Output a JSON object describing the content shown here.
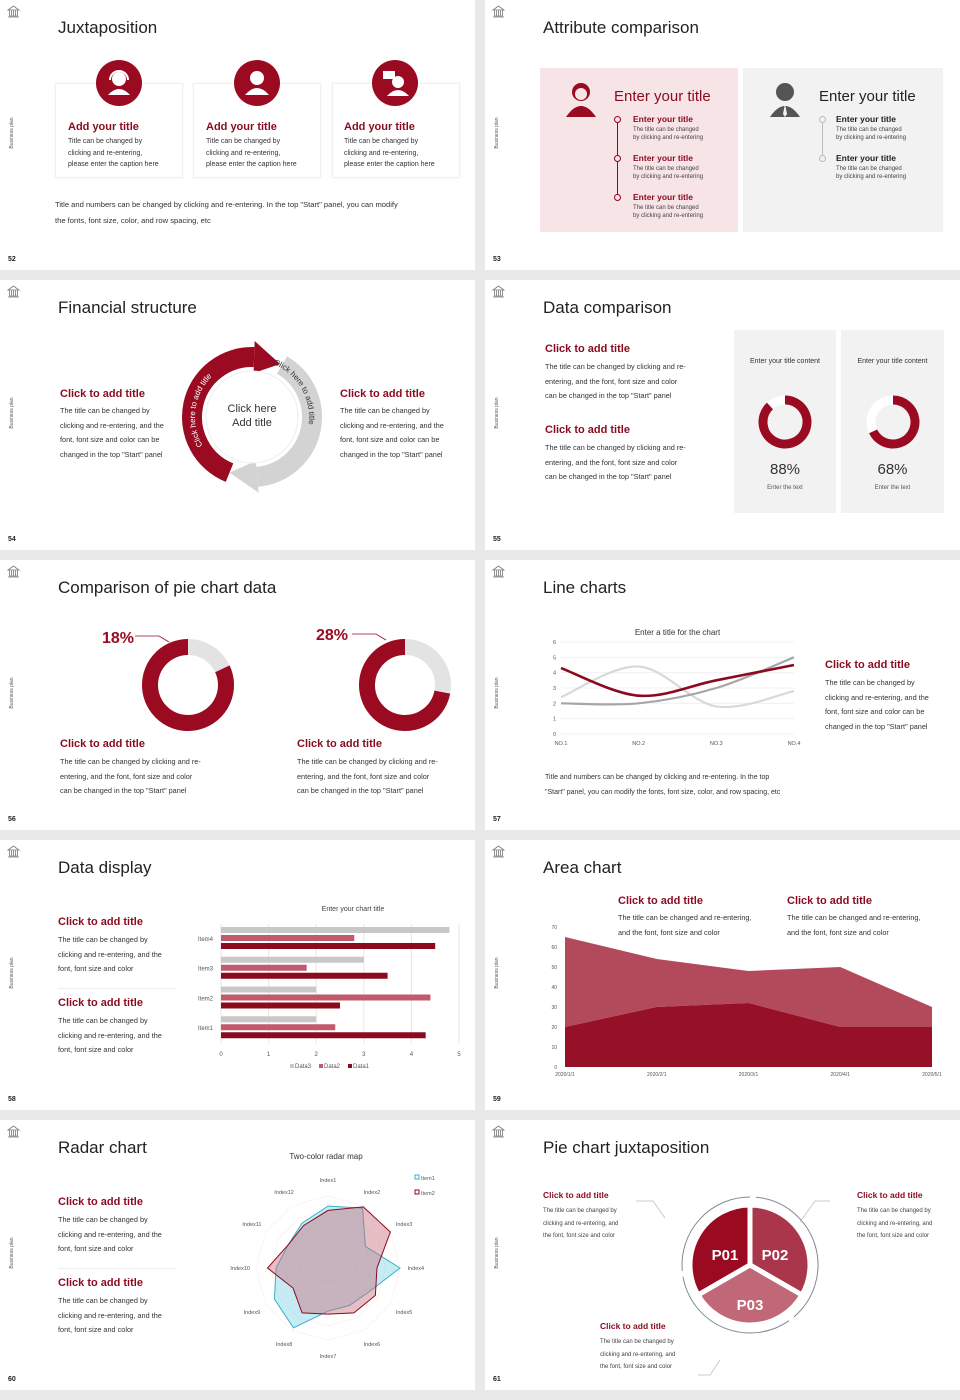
{
  "common": {
    "side_text": "Business plan"
  },
  "colors": {
    "accent": "#9a0b22",
    "accent_mid": "#b04a5a",
    "accent_light": "#c8707f",
    "gray": "#d3d3d3",
    "pink_panel": "#f6e4e7",
    "gray_panel": "#f2f2f2"
  },
  "slides": [
    {
      "page": "52",
      "title": "Juxtaposition",
      "cards": [
        {
          "icon": "headset-person-icon",
          "title": "Add your title",
          "body": "Title can be changed by\nclicking and re-entering,\nplease enter the caption here"
        },
        {
          "icon": "person-icon",
          "title": "Add your title",
          "body": "Title can be changed by\nclicking and re-entering,\nplease enter the caption here"
        },
        {
          "icon": "person-chat-icon",
          "title": "Add your title",
          "body": "Title can be changed by\nclicking and re-entering,\nplease enter the caption here"
        }
      ],
      "footer": "Title and numbers can be changed by clicking and re-entering. In the top \"Start\" panel, you can modify\nthe fonts, font size, color, and row spacing, etc"
    },
    {
      "page": "53",
      "title": "Attribute comparison",
      "left": {
        "title": "Enter your title",
        "items": [
          {
            "title": "Enter your title",
            "body": "The title can be changed\nby clicking and re-entering"
          },
          {
            "title": "Enter your title",
            "body": "The title can be changed\nby clicking and re-entering"
          },
          {
            "title": "Enter your title",
            "body": "The title can be changed\nby clicking and re-entering"
          }
        ]
      },
      "right": {
        "title": "Enter your title",
        "items": [
          {
            "title": "Enter your title",
            "body": "The title can be changed\nby clicking and re-entering"
          },
          {
            "title": "Enter your title",
            "body": "The title can be changed\nby clicking and re-entering"
          }
        ]
      }
    },
    {
      "page": "54",
      "title": "Financial structure",
      "left": {
        "title": "Click to add title",
        "body": "The title can be changed by\nclicking and re-entering, and the\nfont, font size and color can be\nchanged in the top \"Start\" panel"
      },
      "right": {
        "title": "Click to add title",
        "body": "The title can be changed by\nclicking and re-entering, and the\nfont, font size and color can be\nchanged in the top \"Start\" panel"
      },
      "center": "Click here\nAdd title",
      "arc_left": "Click here to add title",
      "arc_right": "Click here to add title"
    },
    {
      "page": "55",
      "title": "Data comparison",
      "blocks": [
        {
          "title": "Click to add title",
          "body": "The title can be changed by clicking and re-\nentering, and the font, font size and color\ncan be changed in the top \"Start\" panel"
        },
        {
          "title": "Click to add title",
          "body": "The title can be changed by clicking and re-\nentering, and the font, font size and color\ncan be changed in the top \"Start\" panel"
        }
      ],
      "cards": [
        {
          "title": "Enter your title content",
          "value": "88%",
          "percent": 88,
          "sub": "Enter the text"
        },
        {
          "title": "Enter your title content",
          "value": "68%",
          "percent": 68,
          "sub": "Enter the text"
        }
      ]
    },
    {
      "page": "56",
      "title": "Comparison of pie chart data",
      "pies": [
        {
          "label": "18%",
          "percent": 18,
          "title": "Click to add title",
          "body": "The title can be changed by clicking and re-\nentering, and the font, font size and color\ncan be changed in the top \"Start\" panel"
        },
        {
          "label": "28%",
          "percent": 28,
          "title": "Click to add title",
          "body": "The title can be changed by clicking and re-\nentering, and the font, font size and color\ncan be changed in the top \"Start\" panel"
        }
      ]
    },
    {
      "page": "57",
      "title": "Line charts",
      "block": {
        "title": "Click to add title",
        "body": "The title can be changed by\nclicking and re-entering, and the\nfont, font size and color can be\nchanged in the top \"Start\" panel"
      },
      "footer": "Title and numbers can be changed by clicking and re-entering. In the top\n\"Start\" panel, you can modify the fonts, font size, color, and row spacing, etc"
    },
    {
      "page": "58",
      "title": "Data display",
      "blocks": [
        {
          "title": "Click to add title",
          "body": "The title can be changed by\nclicking and re-entering, and the\nfont, font size and color"
        },
        {
          "title": "Click to add title",
          "body": "The title can be changed by\nclicking and re-entering, and the\nfont, font size and color"
        }
      ]
    },
    {
      "page": "59",
      "title": "Area chart",
      "blocks": [
        {
          "title": "Click to add title",
          "body": "The title can be changed and re-entering,\nand the font, font size and color"
        },
        {
          "title": "Click to add title",
          "body": "The title can be changed and re-entering,\nand the font, font size and color"
        }
      ]
    },
    {
      "page": "60",
      "title": "Radar chart",
      "blocks": [
        {
          "title": "Click to add title",
          "body": "The title can be changed by\nclicking and re-entering, and the\nfont, font size and color"
        },
        {
          "title": "Click to add title",
          "body": "The title can be changed by\nclicking and re-entering, and the\nfont, font size and color"
        }
      ]
    },
    {
      "page": "61",
      "title": "Pie chart juxtaposition",
      "segments": [
        "P01",
        "P02",
        "P03"
      ],
      "blocks": [
        {
          "title": "Click to add title",
          "body": "The title can be changed by\nclicking and re-entering, and\nthe font, font size and color"
        },
        {
          "title": "Click to add title",
          "body": "The title can be changed by\nclicking and re-entering, and\nthe font, font size and color"
        },
        {
          "title": "Click to add title",
          "body": "The title can be changed by\nclicking and re-entering, and\nthe font, font size and color"
        }
      ]
    }
  ],
  "chart_data": [
    {
      "id": "line",
      "type": "line",
      "title": "Enter a title for the chart",
      "categories": [
        "NO.1",
        "NO.2",
        "NO.3",
        "NO.4"
      ],
      "ylim": [
        0,
        6
      ],
      "yticks": [
        0,
        1,
        2,
        3,
        4,
        5,
        6
      ],
      "grid": true,
      "series": [
        {
          "values": [
            4.3,
            2.5,
            3.5,
            4.5
          ],
          "color": "#8b0a1e"
        },
        {
          "values": [
            2.4,
            4.4,
            1.8,
            2.8
          ],
          "color": "#d9d9d9"
        },
        {
          "values": [
            2.0,
            2.0,
            3.0,
            5.0
          ],
          "color": "#a6a6a6"
        }
      ]
    },
    {
      "id": "bar",
      "type": "bar",
      "orientation": "horizontal",
      "title": "Enter your chart title",
      "categories": [
        "Item1",
        "Item2",
        "Item3",
        "Item4"
      ],
      "xlim": [
        0,
        5
      ],
      "xticks": [
        0,
        1,
        2,
        3,
        4,
        5
      ],
      "legend": "bottom",
      "series": [
        {
          "name": "Data1",
          "values": [
            4.3,
            2.5,
            3.5,
            4.5
          ],
          "color": "#8b0a1e"
        },
        {
          "name": "Data2",
          "values": [
            2.4,
            4.4,
            1.8,
            2.8
          ],
          "color": "#c05a6c"
        },
        {
          "name": "Data3",
          "values": [
            2.0,
            2.0,
            3.0,
            4.8
          ],
          "color": "#c8c8c8"
        }
      ]
    },
    {
      "id": "area",
      "type": "area",
      "stacked": true,
      "categories": [
        "2020/1/1",
        "2020/2/1",
        "2020/3/1",
        "2020/4/1",
        "2020/5/1"
      ],
      "ylim": [
        0,
        70
      ],
      "yticks": [
        0,
        10,
        20,
        30,
        40,
        50,
        60,
        70
      ],
      "series": [
        {
          "values": [
            20,
            30,
            32,
            20,
            20
          ],
          "color": "#961028"
        },
        {
          "values": [
            45,
            24,
            16,
            30,
            10
          ],
          "color": "#b34a5c"
        }
      ]
    },
    {
      "id": "radar",
      "type": "radar",
      "title": "Two-color radar map",
      "categories": [
        "Index1",
        "Index2",
        "Index3",
        "Index4",
        "Index5",
        "Index6",
        "Index7",
        "Index8",
        "Index9",
        "Index10",
        "Index11",
        "Index12"
      ],
      "rmax": 5,
      "legend": "top-right",
      "series": [
        {
          "name": "Item1",
          "values": [
            4.3,
            4.8,
            3.0,
            5.0,
            3.3,
            3.0,
            3.0,
            4.8,
            4.3,
            3.6,
            3.2,
            3.6
          ],
          "color": "#3ab0c8"
        },
        {
          "name": "Item2",
          "values": [
            4.0,
            4.9,
            5.0,
            3.4,
            3.8,
            3.6,
            3.2,
            3.6,
            2.8,
            4.2,
            3.2,
            3.4
          ],
          "color": "#8b0a1e"
        }
      ]
    }
  ]
}
